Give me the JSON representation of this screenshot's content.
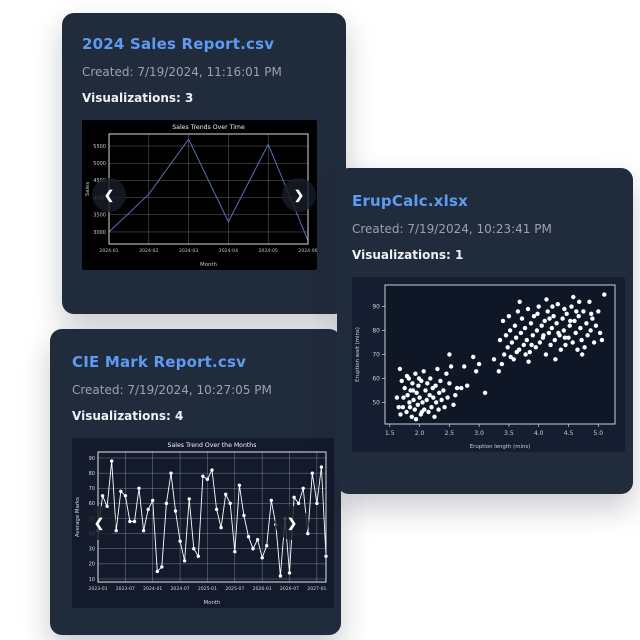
{
  "icons": {
    "prev": "❮",
    "next": "❯"
  },
  "cards": [
    {
      "title": "2024 Sales Report.csv",
      "created": "Created: 7/19/2024, 11:16:01 PM",
      "visualizations": "Visualizations: 3"
    },
    {
      "title": "ErupCalc.xlsx",
      "created": "Created: 7/19/2024, 10:23:41 PM",
      "visualizations": "Visualizations: 1"
    },
    {
      "title": "CIE Mark Report.csv",
      "created": "Created: 7/19/2024, 10:27:05 PM",
      "visualizations": "Visualizations: 4"
    }
  ],
  "colors": {
    "card_bg": "#202b3b",
    "title_blue": "#5e9bf2",
    "muted_gray": "#98a2b0",
    "white_text": "#eef1f6"
  },
  "chart_data": [
    {
      "type": "line",
      "title": "Sales Trends Over Time",
      "xlabel": "Month",
      "ylabel": "Sales",
      "categories": [
        "2024-01",
        "2024-02",
        "2024-03",
        "2024-04",
        "2024-05",
        "2024-06"
      ],
      "values": [
        3000,
        4100,
        5700,
        3300,
        5550,
        2750
      ],
      "yticks": [
        3000,
        3500,
        4000,
        4500,
        5000,
        5500
      ],
      "ylim": [
        2650,
        5850
      ],
      "grid": true,
      "legend": false,
      "markers": false,
      "fig_bg": "#000000",
      "grid_color": "rgba(255,255,255,0.40)",
      "border_color": "#d8d8d8",
      "line_color": "#5671b5",
      "tick_color": "#c9c9c9",
      "title_color": "#f0f0f0"
    },
    {
      "type": "scatter",
      "title": "",
      "xlabel": "Eruption length (mins)",
      "ylabel": "Eruption wait (mins)",
      "xticks": [
        1.5,
        2.0,
        2.5,
        3.0,
        3.5,
        4.0,
        4.5,
        5.0
      ],
      "yticks": [
        50,
        60,
        70,
        80,
        90
      ],
      "xlim": [
        1.42,
        5.28
      ],
      "ylim": [
        41,
        99
      ],
      "grid": false,
      "legend": false,
      "fig_bg": "#151e31",
      "plot_bg": "#0f1726",
      "border_color": "#c9cfda",
      "point_color": "#ffffff",
      "tick_color": "#c9d0db",
      "points": [
        [
          1.62,
          52
        ],
        [
          1.65,
          48
        ],
        [
          1.67,
          64
        ],
        [
          1.68,
          45
        ],
        [
          1.7,
          59
        ],
        [
          1.72,
          48
        ],
        [
          1.73,
          52
        ],
        [
          1.75,
          56
        ],
        [
          1.78,
          46
        ],
        [
          1.79,
          61
        ],
        [
          1.8,
          53
        ],
        [
          1.82,
          60
        ],
        [
          1.83,
          50
        ],
        [
          1.84,
          48
        ],
        [
          1.85,
          55
        ],
        [
          1.87,
          44
        ],
        [
          1.88,
          58
        ],
        [
          1.89,
          55
        ],
        [
          1.9,
          51
        ],
        [
          1.92,
          47
        ],
        [
          1.93,
          62
        ],
        [
          1.94,
          43
        ],
        [
          1.95,
          54
        ],
        [
          1.97,
          49
        ],
        [
          1.98,
          57
        ],
        [
          1.99,
          60
        ],
        [
          2.0,
          52
        ],
        [
          2.02,
          45
        ],
        [
          2.03,
          59
        ],
        [
          2.04,
          46
        ],
        [
          2.05,
          50
        ],
        [
          2.07,
          63
        ],
        [
          2.08,
          47
        ],
        [
          2.1,
          55
        ],
        [
          2.12,
          51
        ],
        [
          2.13,
          58
        ],
        [
          2.15,
          46
        ],
        [
          2.17,
          53
        ],
        [
          2.18,
          60
        ],
        [
          2.2,
          48
        ],
        [
          2.22,
          56
        ],
        [
          2.23,
          52
        ],
        [
          2.25,
          44
        ],
        [
          2.27,
          57
        ],
        [
          2.28,
          50
        ],
        [
          2.3,
          64
        ],
        [
          2.32,
          47
        ],
        [
          2.33,
          54
        ],
        [
          2.35,
          59
        ],
        [
          2.37,
          51
        ],
        [
          2.4,
          55
        ],
        [
          2.42,
          48
        ],
        [
          2.45,
          62
        ],
        [
          2.47,
          52
        ],
        [
          2.5,
          58
        ],
        [
          2.5,
          70
        ],
        [
          2.53,
          65
        ],
        [
          2.57,
          49
        ],
        [
          2.6,
          53
        ],
        [
          2.63,
          56
        ],
        [
          2.7,
          56
        ],
        [
          2.75,
          65
        ],
        [
          2.8,
          57
        ],
        [
          2.9,
          69
        ],
        [
          2.95,
          63
        ],
        [
          3.0,
          66
        ],
        [
          3.1,
          54
        ],
        [
          3.25,
          68
        ],
        [
          3.33,
          63
        ],
        [
          3.35,
          76
        ],
        [
          3.38,
          66
        ],
        [
          3.4,
          84
        ],
        [
          3.42,
          70
        ],
        [
          3.45,
          78
        ],
        [
          3.48,
          73
        ],
        [
          3.5,
          86
        ],
        [
          3.52,
          80
        ],
        [
          3.53,
          69
        ],
        [
          3.55,
          75
        ],
        [
          3.58,
          68
        ],
        [
          3.6,
          82
        ],
        [
          3.62,
          77
        ],
        [
          3.63,
          71
        ],
        [
          3.65,
          88
        ],
        [
          3.67,
          72
        ],
        [
          3.68,
          92
        ],
        [
          3.7,
          79
        ],
        [
          3.72,
          85
        ],
        [
          3.75,
          74
        ],
        [
          3.77,
          81
        ],
        [
          3.78,
          70
        ],
        [
          3.8,
          76
        ],
        [
          3.82,
          89
        ],
        [
          3.83,
          67
        ],
        [
          3.85,
          71
        ],
        [
          3.87,
          83
        ],
        [
          3.88,
          74
        ],
        [
          3.9,
          78
        ],
        [
          3.92,
          86
        ],
        [
          3.95,
          73
        ],
        [
          3.97,
          80
        ],
        [
          3.98,
          87
        ],
        [
          4.0,
          90
        ],
        [
          4.02,
          75
        ],
        [
          4.05,
          82
        ],
        [
          4.07,
          77
        ],
        [
          4.08,
          78
        ],
        [
          4.1,
          84
        ],
        [
          4.12,
          70
        ],
        [
          4.13,
          93
        ],
        [
          4.15,
          88
        ],
        [
          4.17,
          79
        ],
        [
          4.18,
          85
        ],
        [
          4.2,
          74
        ],
        [
          4.22,
          81
        ],
        [
          4.23,
          90
        ],
        [
          4.25,
          86
        ],
        [
          4.27,
          76
        ],
        [
          4.28,
          68
        ],
        [
          4.3,
          83
        ],
        [
          4.32,
          91
        ],
        [
          4.33,
          79
        ],
        [
          4.35,
          78
        ],
        [
          4.37,
          72
        ],
        [
          4.4,
          85
        ],
        [
          4.42,
          80
        ],
        [
          4.43,
          89
        ],
        [
          4.44,
          77
        ],
        [
          4.45,
          74
        ],
        [
          4.47,
          87
        ],
        [
          4.5,
          77
        ],
        [
          4.52,
          82
        ],
        [
          4.53,
          84
        ],
        [
          4.55,
          90
        ],
        [
          4.57,
          75
        ],
        [
          4.58,
          94
        ],
        [
          4.6,
          84
        ],
        [
          4.62,
          79
        ],
        [
          4.63,
          88
        ],
        [
          4.65,
          72
        ],
        [
          4.67,
          86
        ],
        [
          4.68,
          92
        ],
        [
          4.7,
          81
        ],
        [
          4.72,
          76
        ],
        [
          4.73,
          70
        ],
        [
          4.75,
          88
        ],
        [
          4.77,
          73
        ],
        [
          4.8,
          83
        ],
        [
          4.82,
          78
        ],
        [
          4.85,
          92
        ],
        [
          4.87,
          80
        ],
        [
          4.88,
          87
        ],
        [
          4.9,
          85
        ],
        [
          4.93,
          75
        ],
        [
          4.96,
          82
        ],
        [
          5.0,
          88
        ],
        [
          5.03,
          79
        ],
        [
          5.06,
          76
        ],
        [
          5.1,
          95
        ]
      ]
    },
    {
      "type": "line",
      "title": "Sales Trend Over the Months",
      "xlabel": "Month",
      "ylabel": "Average Marks",
      "x_tick_labels": [
        "2023-01",
        "2023-07",
        "2024-01",
        "2024-07",
        "2025-01",
        "2025-07",
        "2026-01",
        "2026-07",
        "2027-01"
      ],
      "tick_every": 6,
      "values": [
        42,
        65,
        58,
        88,
        42,
        68,
        65,
        48,
        48,
        70,
        42,
        56,
        62,
        15,
        18,
        60,
        80,
        55,
        35,
        22,
        63,
        30,
        25,
        78,
        76,
        82,
        56,
        44,
        66,
        60,
        28,
        72,
        52,
        38,
        30,
        36,
        24,
        32,
        62,
        46,
        12,
        50,
        14,
        64,
        60,
        70,
        40,
        80,
        60,
        84,
        25
      ],
      "yticks": [
        10,
        20,
        30,
        40,
        50,
        60,
        70,
        80,
        90
      ],
      "ylim": [
        8,
        94
      ],
      "grid": true,
      "legend": false,
      "markers": true,
      "fig_bg": "#121a2c",
      "grid_color": "rgba(255,255,255,0.45)",
      "border_color": "#e6e6e6",
      "line_color": "#ffffff",
      "tick_color": "#d5dae2",
      "title_color": "#f2f4f8"
    }
  ]
}
